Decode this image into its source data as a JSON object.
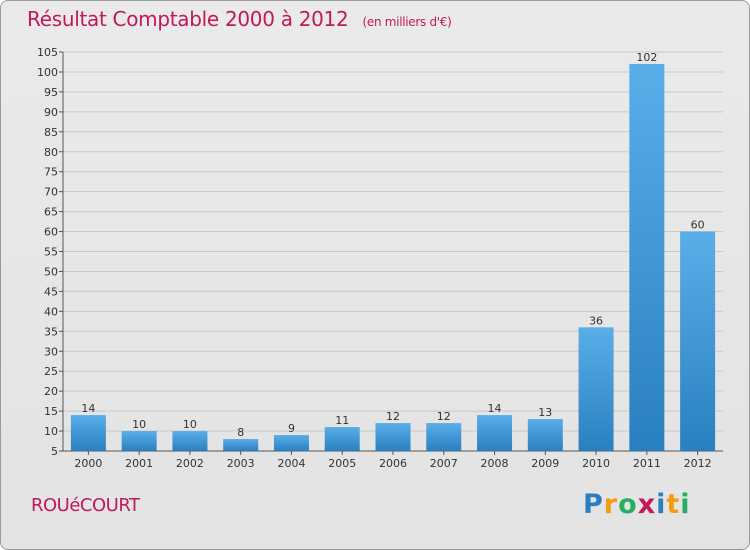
{
  "header": {
    "title": "Résultat Comptable 2000 à 2012",
    "subtitle": "(en milliers d'€)"
  },
  "footer": {
    "town": "ROUéCOURT",
    "brand": "Proxiti"
  },
  "colors": {
    "title": "#c2185b",
    "bar_light": "#5aaee8",
    "bar_dark": "#2a7fc0",
    "grid": "#c9c9c9"
  },
  "chart_data": {
    "type": "bar",
    "title": "Résultat Comptable 2000 à 2012",
    "ylabel": "(en milliers d'€)",
    "xlabel": "",
    "categories": [
      "2000",
      "2001",
      "2002",
      "2003",
      "2004",
      "2005",
      "2006",
      "2007",
      "2008",
      "2009",
      "2010",
      "2011",
      "2012"
    ],
    "values": [
      14,
      10,
      10,
      8,
      9,
      11,
      12,
      12,
      14,
      13,
      36,
      102,
      60
    ],
    "ylim": [
      5,
      105
    ],
    "yticks": [
      5,
      10,
      15,
      20,
      25,
      30,
      35,
      40,
      45,
      50,
      55,
      60,
      65,
      70,
      75,
      80,
      85,
      90,
      95,
      100,
      105
    ],
    "grid": true,
    "legend": "none"
  }
}
